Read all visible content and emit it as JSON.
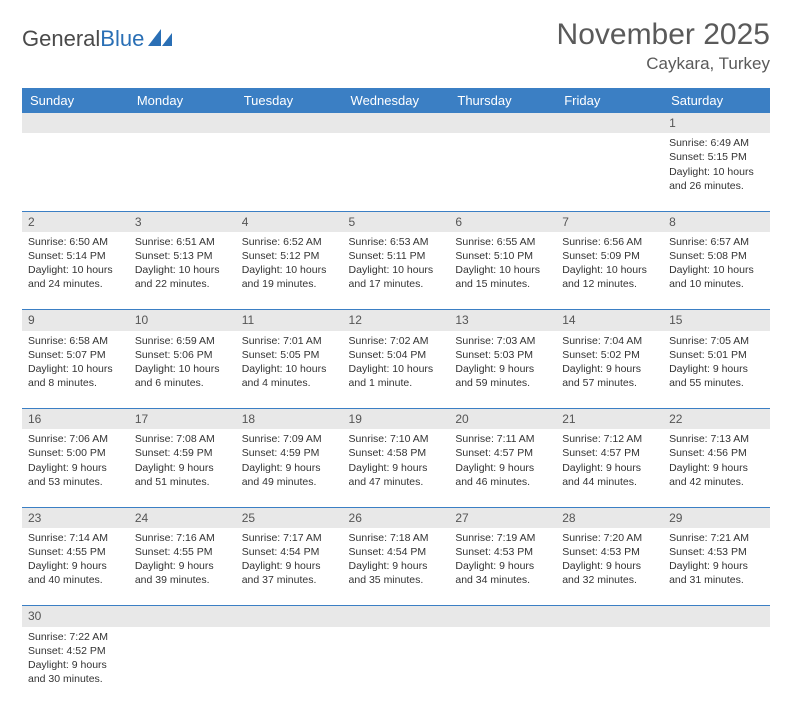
{
  "logo": {
    "word1": "General",
    "word2": "Blue",
    "accent_color": "#2a6fb5"
  },
  "title": "November 2025",
  "location": "Caykara, Turkey",
  "day_headers": [
    "Sunday",
    "Monday",
    "Tuesday",
    "Wednesday",
    "Thursday",
    "Friday",
    "Saturday"
  ],
  "header_bg": "#3b7fc4",
  "header_fg": "#ffffff",
  "daynum_bg": "#e8e8e8",
  "cell_border": "#3b7fc4",
  "weeks": [
    {
      "nums": [
        "",
        "",
        "",
        "",
        "",
        "",
        "1"
      ],
      "cells": [
        null,
        null,
        null,
        null,
        null,
        null,
        {
          "sunrise": "6:49 AM",
          "sunset": "5:15 PM",
          "daylight": "10 hours and 26 minutes."
        }
      ]
    },
    {
      "nums": [
        "2",
        "3",
        "4",
        "5",
        "6",
        "7",
        "8"
      ],
      "cells": [
        {
          "sunrise": "6:50 AM",
          "sunset": "5:14 PM",
          "daylight": "10 hours and 24 minutes."
        },
        {
          "sunrise": "6:51 AM",
          "sunset": "5:13 PM",
          "daylight": "10 hours and 22 minutes."
        },
        {
          "sunrise": "6:52 AM",
          "sunset": "5:12 PM",
          "daylight": "10 hours and 19 minutes."
        },
        {
          "sunrise": "6:53 AM",
          "sunset": "5:11 PM",
          "daylight": "10 hours and 17 minutes."
        },
        {
          "sunrise": "6:55 AM",
          "sunset": "5:10 PM",
          "daylight": "10 hours and 15 minutes."
        },
        {
          "sunrise": "6:56 AM",
          "sunset": "5:09 PM",
          "daylight": "10 hours and 12 minutes."
        },
        {
          "sunrise": "6:57 AM",
          "sunset": "5:08 PM",
          "daylight": "10 hours and 10 minutes."
        }
      ]
    },
    {
      "nums": [
        "9",
        "10",
        "11",
        "12",
        "13",
        "14",
        "15"
      ],
      "cells": [
        {
          "sunrise": "6:58 AM",
          "sunset": "5:07 PM",
          "daylight": "10 hours and 8 minutes."
        },
        {
          "sunrise": "6:59 AM",
          "sunset": "5:06 PM",
          "daylight": "10 hours and 6 minutes."
        },
        {
          "sunrise": "7:01 AM",
          "sunset": "5:05 PM",
          "daylight": "10 hours and 4 minutes."
        },
        {
          "sunrise": "7:02 AM",
          "sunset": "5:04 PM",
          "daylight": "10 hours and 1 minute."
        },
        {
          "sunrise": "7:03 AM",
          "sunset": "5:03 PM",
          "daylight": "9 hours and 59 minutes."
        },
        {
          "sunrise": "7:04 AM",
          "sunset": "5:02 PM",
          "daylight": "9 hours and 57 minutes."
        },
        {
          "sunrise": "7:05 AM",
          "sunset": "5:01 PM",
          "daylight": "9 hours and 55 minutes."
        }
      ]
    },
    {
      "nums": [
        "16",
        "17",
        "18",
        "19",
        "20",
        "21",
        "22"
      ],
      "cells": [
        {
          "sunrise": "7:06 AM",
          "sunset": "5:00 PM",
          "daylight": "9 hours and 53 minutes."
        },
        {
          "sunrise": "7:08 AM",
          "sunset": "4:59 PM",
          "daylight": "9 hours and 51 minutes."
        },
        {
          "sunrise": "7:09 AM",
          "sunset": "4:59 PM",
          "daylight": "9 hours and 49 minutes."
        },
        {
          "sunrise": "7:10 AM",
          "sunset": "4:58 PM",
          "daylight": "9 hours and 47 minutes."
        },
        {
          "sunrise": "7:11 AM",
          "sunset": "4:57 PM",
          "daylight": "9 hours and 46 minutes."
        },
        {
          "sunrise": "7:12 AM",
          "sunset": "4:57 PM",
          "daylight": "9 hours and 44 minutes."
        },
        {
          "sunrise": "7:13 AM",
          "sunset": "4:56 PM",
          "daylight": "9 hours and 42 minutes."
        }
      ]
    },
    {
      "nums": [
        "23",
        "24",
        "25",
        "26",
        "27",
        "28",
        "29"
      ],
      "cells": [
        {
          "sunrise": "7:14 AM",
          "sunset": "4:55 PM",
          "daylight": "9 hours and 40 minutes."
        },
        {
          "sunrise": "7:16 AM",
          "sunset": "4:55 PM",
          "daylight": "9 hours and 39 minutes."
        },
        {
          "sunrise": "7:17 AM",
          "sunset": "4:54 PM",
          "daylight": "9 hours and 37 minutes."
        },
        {
          "sunrise": "7:18 AM",
          "sunset": "4:54 PM",
          "daylight": "9 hours and 35 minutes."
        },
        {
          "sunrise": "7:19 AM",
          "sunset": "4:53 PM",
          "daylight": "9 hours and 34 minutes."
        },
        {
          "sunrise": "7:20 AM",
          "sunset": "4:53 PM",
          "daylight": "9 hours and 32 minutes."
        },
        {
          "sunrise": "7:21 AM",
          "sunset": "4:53 PM",
          "daylight": "9 hours and 31 minutes."
        }
      ]
    },
    {
      "nums": [
        "30",
        "",
        "",
        "",
        "",
        "",
        ""
      ],
      "cells": [
        {
          "sunrise": "7:22 AM",
          "sunset": "4:52 PM",
          "daylight": "9 hours and 30 minutes."
        },
        null,
        null,
        null,
        null,
        null,
        null
      ]
    }
  ],
  "labels": {
    "sunrise": "Sunrise: ",
    "sunset": "Sunset: ",
    "daylight": "Daylight: "
  }
}
